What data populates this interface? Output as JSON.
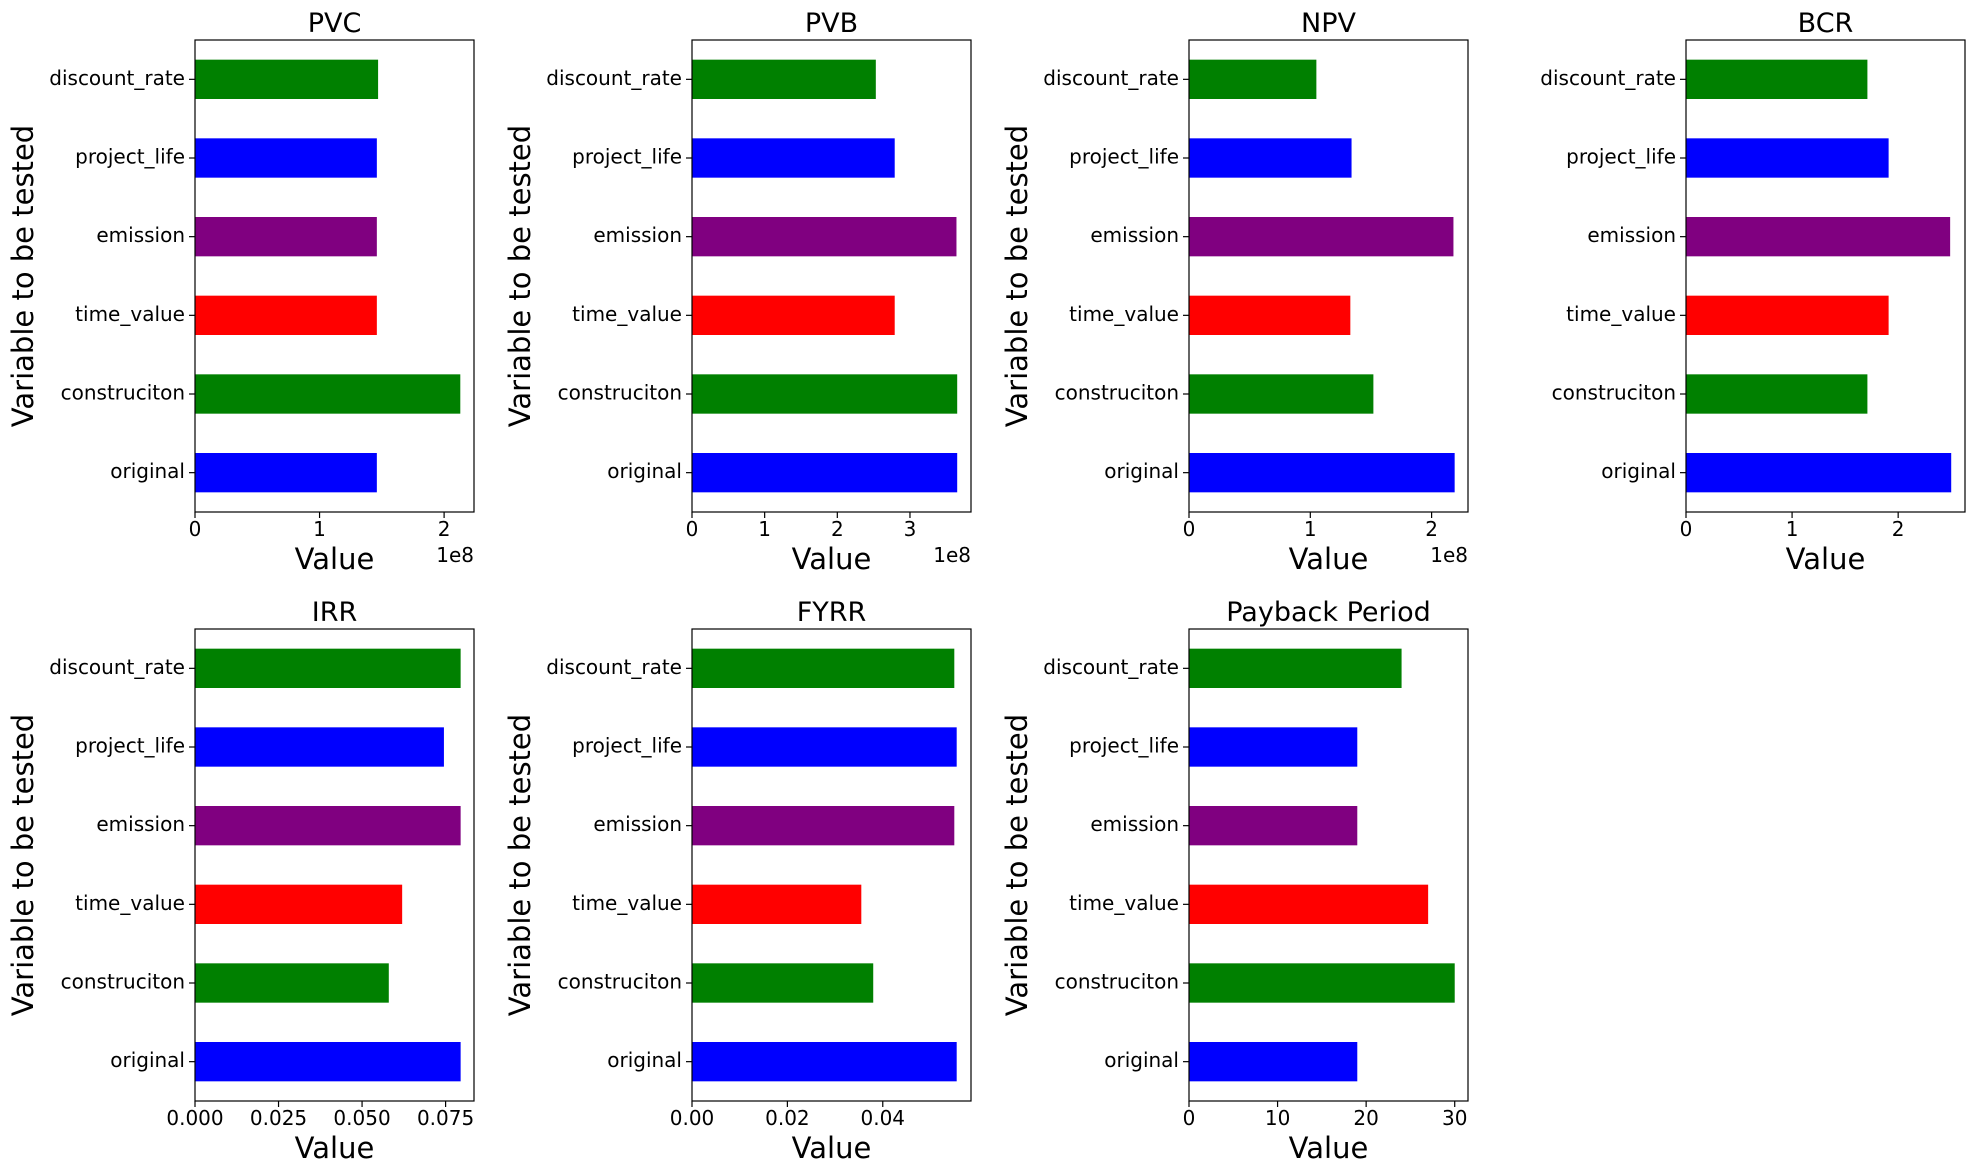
{
  "figure": {
    "background": "#ffffff"
  },
  "chart_data": [
    {
      "type": "bar",
      "orientation": "horizontal",
      "title": "PVC",
      "xlabel": "Value",
      "ylabel": "Variable to be tested",
      "categories": [
        "original",
        "construciton",
        "time_value",
        "emission",
        "project_life",
        "discount_rate"
      ],
      "colors": [
        "#0000ff",
        "#008000",
        "#ff0000",
        "#800080",
        "#0000ff",
        "#008000"
      ],
      "values": [
        146000000,
        213000000,
        146000000,
        146000000,
        146000000,
        147000000
      ],
      "xlim": [
        0,
        224000000
      ],
      "xticks": [
        0,
        100000000,
        200000000
      ],
      "xtick_labels": [
        "0",
        "1",
        "2"
      ],
      "offset_text": "1e8",
      "grid": false,
      "legend": "none"
    },
    {
      "type": "bar",
      "orientation": "horizontal",
      "title": "PVB",
      "xlabel": "Value",
      "ylabel": "Variable to be tested",
      "categories": [
        "original",
        "construciton",
        "time_value",
        "emission",
        "project_life",
        "discount_rate"
      ],
      "colors": [
        "#0000ff",
        "#008000",
        "#ff0000",
        "#800080",
        "#0000ff",
        "#008000"
      ],
      "values": [
        365000000,
        365000000,
        279000000,
        364000000,
        279000000,
        253000000
      ],
      "xlim": [
        0,
        384000000
      ],
      "xticks": [
        0,
        100000000,
        200000000,
        300000000
      ],
      "xtick_labels": [
        "0",
        "1",
        "2",
        "3"
      ],
      "offset_text": "1e8",
      "grid": false,
      "legend": "none"
    },
    {
      "type": "bar",
      "orientation": "horizontal",
      "title": "NPV",
      "xlabel": "Value",
      "ylabel": "Variable to be tested",
      "categories": [
        "original",
        "construciton",
        "time_value",
        "emission",
        "project_life",
        "discount_rate"
      ],
      "colors": [
        "#0000ff",
        "#008000",
        "#ff0000",
        "#800080",
        "#0000ff",
        "#008000"
      ],
      "values": [
        219000000,
        152000000,
        133000000,
        218000000,
        134000000,
        105000000
      ],
      "xlim": [
        0,
        230000000
      ],
      "xticks": [
        0,
        100000000,
        200000000
      ],
      "xtick_labels": [
        "0",
        "1",
        "2"
      ],
      "offset_text": "1e8",
      "grid": false,
      "legend": "none"
    },
    {
      "type": "bar",
      "orientation": "horizontal",
      "title": "BCR",
      "xlabel": "Value",
      "ylabel": "",
      "categories": [
        "original",
        "construciton",
        "time_value",
        "emission",
        "project_life",
        "discount_rate"
      ],
      "colors": [
        "#0000ff",
        "#008000",
        "#ff0000",
        "#800080",
        "#0000ff",
        "#008000"
      ],
      "values": [
        2.5,
        1.71,
        1.91,
        2.49,
        1.91,
        1.71
      ],
      "xlim": [
        0,
        2.63
      ],
      "xticks": [
        0,
        1,
        2
      ],
      "xtick_labels": [
        "0",
        "1",
        "2"
      ],
      "offset_text": "",
      "grid": false,
      "legend": "none"
    },
    {
      "type": "bar",
      "orientation": "horizontal",
      "title": "IRR",
      "xlabel": "Value",
      "ylabel": "Variable to be tested",
      "categories": [
        "original",
        "construciton",
        "time_value",
        "emission",
        "project_life",
        "discount_rate"
      ],
      "colors": [
        "#0000ff",
        "#008000",
        "#ff0000",
        "#800080",
        "#0000ff",
        "#008000"
      ],
      "values": [
        0.0795,
        0.058,
        0.062,
        0.0795,
        0.0745,
        0.0795
      ],
      "xlim": [
        0,
        0.0835
      ],
      "xticks": [
        0,
        0.025,
        0.05,
        0.075
      ],
      "xtick_labels": [
        "0.000",
        "0.025",
        "0.050",
        "0.075"
      ],
      "offset_text": "",
      "grid": false,
      "legend": "none"
    },
    {
      "type": "bar",
      "orientation": "horizontal",
      "title": "FYRR",
      "xlabel": "Value",
      "ylabel": "Variable to be tested",
      "categories": [
        "original",
        "construciton",
        "time_value",
        "emission",
        "project_life",
        "discount_rate"
      ],
      "colors": [
        "#0000ff",
        "#008000",
        "#ff0000",
        "#800080",
        "#0000ff",
        "#008000"
      ],
      "values": [
        0.0555,
        0.038,
        0.0355,
        0.055,
        0.0555,
        0.055
      ],
      "xlim": [
        0,
        0.0585
      ],
      "xticks": [
        0,
        0.02,
        0.04
      ],
      "xtick_labels": [
        "0.00",
        "0.02",
        "0.04"
      ],
      "offset_text": "",
      "grid": false,
      "legend": "none"
    },
    {
      "type": "bar",
      "orientation": "horizontal",
      "title": "Payback Period",
      "xlabel": "Value",
      "ylabel": "Variable to be tested",
      "categories": [
        "original",
        "construciton",
        "time_value",
        "emission",
        "project_life",
        "discount_rate"
      ],
      "colors": [
        "#0000ff",
        "#008000",
        "#ff0000",
        "#800080",
        "#0000ff",
        "#008000"
      ],
      "values": [
        19,
        30,
        27,
        19,
        19,
        24
      ],
      "xlim": [
        0,
        31.5
      ],
      "xticks": [
        0,
        10,
        20,
        30
      ],
      "xtick_labels": [
        "0",
        "10",
        "20",
        "30"
      ],
      "offset_text": "",
      "grid": false,
      "legend": "none"
    }
  ]
}
